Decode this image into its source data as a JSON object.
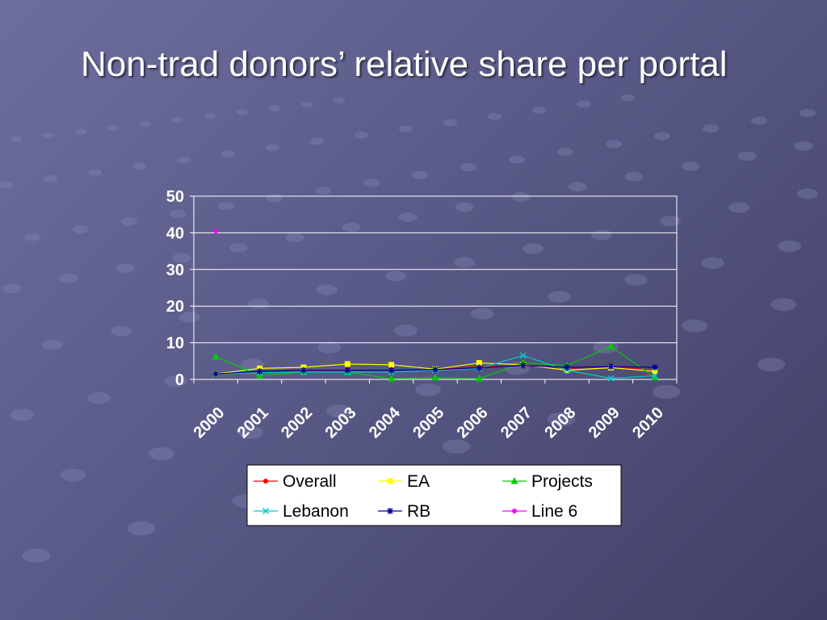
{
  "slide": {
    "title": "Non-trad donors’ relative share per portal"
  },
  "colors": {
    "Overall": "#ff0000",
    "EA": "#ffff00",
    "Projects": "#00cc00",
    "Lebanon": "#00cccc",
    "RB": "#000099",
    "Line 6": "#ff00ff"
  },
  "chart_data": {
    "type": "line",
    "title": "",
    "xlabel": "",
    "ylabel": "",
    "categories": [
      "2000",
      "2001",
      "2002",
      "2003",
      "2004",
      "2005",
      "2006",
      "2007",
      "2008",
      "2009",
      "2010"
    ],
    "ylim": [
      0,
      50
    ],
    "yticks": [
      0,
      10,
      20,
      30,
      40,
      50
    ],
    "grid": true,
    "legend_position": "bottom",
    "series": [
      {
        "name": "Overall",
        "marker": "circle",
        "values": [
          1.5,
          2.0,
          2.5,
          2.5,
          2.5,
          2.7,
          3.5,
          4.0,
          3.0,
          3.5,
          2.5
        ]
      },
      {
        "name": "EA",
        "marker": "square",
        "values": [
          1.5,
          3.0,
          3.3,
          4.2,
          4.0,
          2.8,
          4.5,
          4.0,
          2.5,
          3.2,
          2.2
        ]
      },
      {
        "name": "Projects",
        "marker": "triangle",
        "values": [
          6.2,
          1.0,
          2.0,
          2.0,
          0.2,
          0.5,
          0.2,
          4.5,
          3.8,
          9.0,
          0.5
        ]
      },
      {
        "name": "Lebanon",
        "marker": "x",
        "values": [
          1.5,
          1.8,
          2.0,
          2.0,
          2.0,
          2.5,
          3.0,
          6.5,
          2.5,
          0.3,
          1.0
        ]
      },
      {
        "name": "RB",
        "marker": "star",
        "values": [
          1.5,
          2.2,
          2.5,
          2.5,
          2.5,
          2.7,
          3.2,
          3.8,
          3.3,
          3.5,
          3.3
        ]
      },
      {
        "name": "Line 6",
        "marker": "circle",
        "values": [
          40.5,
          null,
          null,
          null,
          null,
          null,
          null,
          null,
          null,
          null,
          null
        ]
      }
    ]
  }
}
